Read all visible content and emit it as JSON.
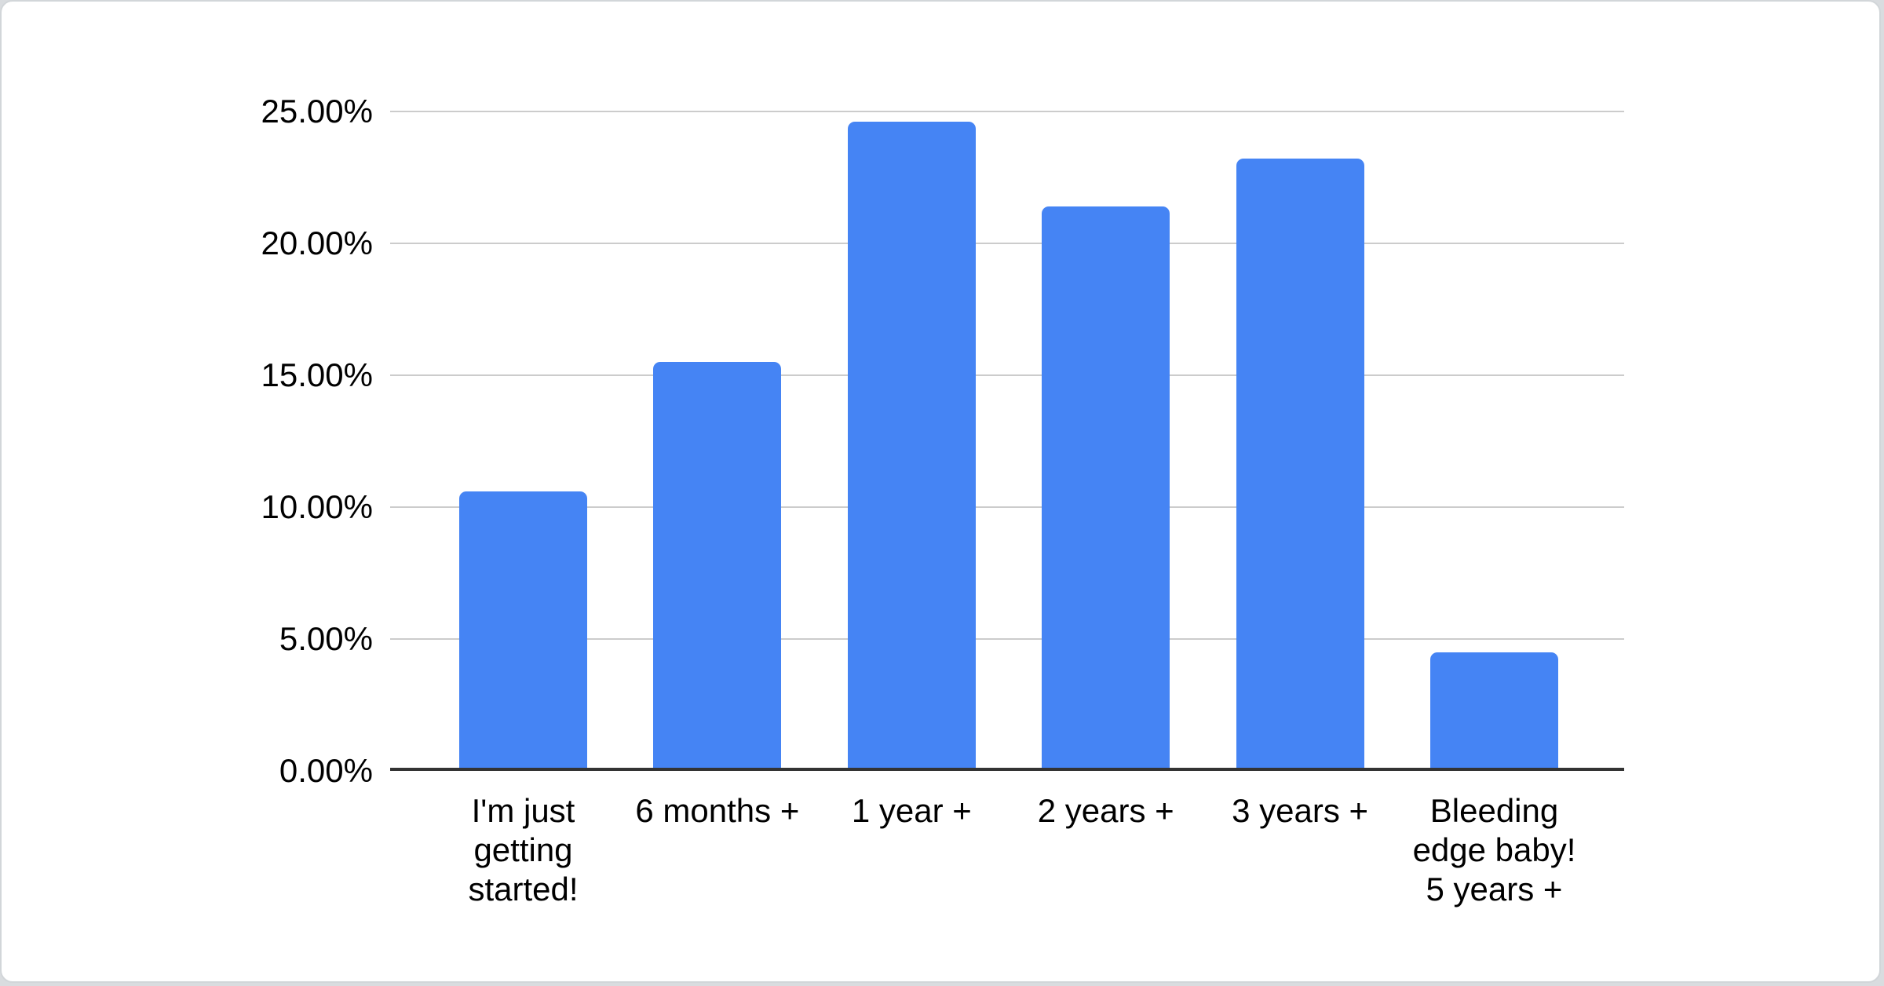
{
  "card": {
    "background": "#ffffff",
    "border_color": "#d2d6d9",
    "page_background": "#d9dcdf"
  },
  "chart_data": {
    "type": "bar",
    "title": "",
    "xlabel": "",
    "ylabel": "",
    "legend": "none",
    "grid": true,
    "categories": [
      "I'm just\ngetting\nstarted!",
      "6 months +",
      "1 year +",
      "2 years +",
      "3 years +",
      "Bleeding\nedge baby!\n5 years +"
    ],
    "values": [
      10.6,
      15.5,
      24.6,
      21.4,
      23.2,
      4.5
    ],
    "unit": "%",
    "ylim": [
      0,
      25
    ],
    "ytick_step": 5,
    "ytick_labels": [
      "0.00%",
      "5.00%",
      "10.00%",
      "15.00%",
      "20.00%",
      "25.00%"
    ],
    "bar_color": "#4584F4",
    "gridline_color": "#cccccc",
    "axis_line_color": "#333333",
    "tick_label_color": "#000000"
  }
}
